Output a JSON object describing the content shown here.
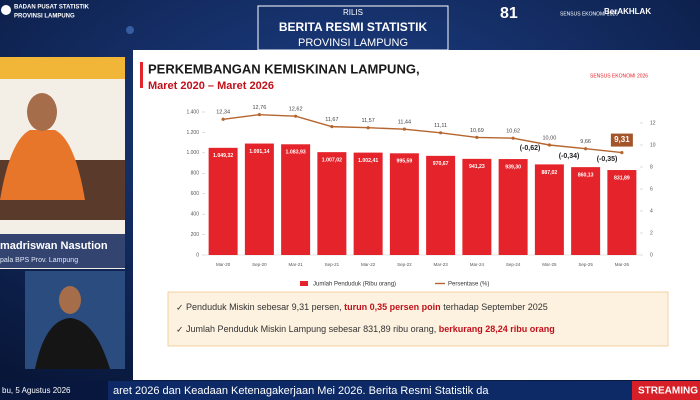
{
  "header": {
    "org_line1": "BADAN PUSAT STATISTIK",
    "org_line2": "PROVINSI LAMPUNG",
    "rilis": "RILIS",
    "title": "BERITA RESMI STATISTIK",
    "subtitle": "PROVINSI LAMPUNG",
    "logo_sensus": "SENSUS EKONOMI 2026",
    "logo_berakhlak": "BerAKHLAK"
  },
  "presenter": {
    "name": "madriswan Nasution",
    "role": "pala BPS Prov. Lampung"
  },
  "chart_data": {
    "type": "bar",
    "title": "PERKEMBANGAN KEMISKINAN LAMPUNG,",
    "subtitle": "Maret 2020 – Maret 2026",
    "categories": [
      "Mar-20",
      "Sep-20",
      "Mar-21",
      "Sep-21",
      "Mar-22",
      "Sep-22",
      "Mar-23",
      "Mar-24",
      "Sep-24",
      "Mar-25",
      "Sep-25",
      "Mar-26"
    ],
    "series": [
      {
        "name": "Jumlah Penduduk (Ribu orang)",
        "type": "bar",
        "color": "#e5232a",
        "values": [
          1049.32,
          1091.14,
          1083.93,
          1007.02,
          1002.41,
          995.59,
          970.67,
          941.23,
          939.3,
          887.02,
          860.13,
          831.89
        ],
        "value_labels": [
          "1.049,32",
          "1.091,14",
          "1.083,93",
          "1.007,02",
          "1.002,41",
          "995,59",
          "970,67",
          "941,23",
          "939,30",
          "887,02",
          "860,13",
          "831,89"
        ]
      },
      {
        "name": "Persentase (%)",
        "type": "line",
        "axis": "y2",
        "color": "#b5652e",
        "values": [
          12.34,
          12.76,
          12.62,
          11.67,
          11.57,
          11.44,
          11.11,
          10.69,
          10.62,
          10.0,
          9.66,
          9.31
        ],
        "value_labels": [
          "12,34",
          "12,76",
          "12,62",
          "11,67",
          "11,57",
          "11,44",
          "11,11",
          "10,69",
          "10,62",
          "10,00",
          "9,66",
          "9,31"
        ]
      }
    ],
    "ylim": [
      0,
      1400
    ],
    "yticks": [
      0,
      200,
      400,
      600,
      800,
      {
        "value": 1000,
        "label": "1.000"
      },
      {
        "value": 1200,
        "label": "1.200"
      },
      {
        "value": 1400,
        "label": "1.400"
      }
    ],
    "y2lim": [
      0,
      13
    ],
    "y2ticks": [
      0,
      2,
      4,
      6,
      8,
      10,
      12
    ],
    "annotations": [
      "(-0,62)",
      "(-0,34)",
      "(-0,35)"
    ],
    "legend": "bottom"
  },
  "bullets": [
    {
      "text": "Penduduk Miskin sebesar 9,31 persen,",
      "highlight": "turun 0,35 persen poin",
      "rest": "terhadap September 2025"
    },
    {
      "text": "Jumlah Penduduk Miskin Lampung sebesar 831,89 ribu orang,",
      "highlight": "berkurang 28,24 ribu orang"
    }
  ],
  "ticker": {
    "date": "bu, 5 Agustus 2026",
    "text": "aret 2026 dan Keadaan Ketenagakerjaan Mei 2026. Berita Resmi Statistik da",
    "badge": "STREAMING"
  }
}
